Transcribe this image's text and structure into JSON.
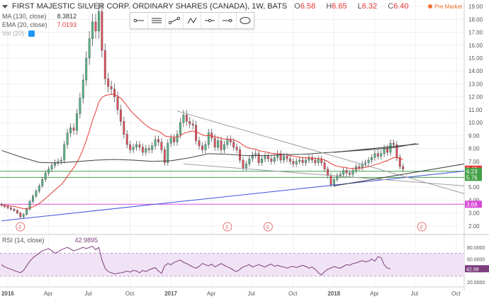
{
  "header": {
    "title": "FIRST MAJESTIC SILVER CORP. ORDINARY SHARES (CANADA), 1W, BATS",
    "open_label": "O",
    "open": "6.58",
    "high_label": "H",
    "high": "6.65",
    "low_label": "L",
    "low": "6.32",
    "close_label": "C",
    "close": "6.40",
    "pre_market": "Pre Market"
  },
  "indicators": {
    "ma_label": "MA (130, close)",
    "ma_value": "8.3812",
    "ema_label": "EMA (20, close)",
    "ema_value": "7.0193",
    "vol_label": "Vol (20)",
    "rsi_label": "RSI (14, close)",
    "rsi_value": "42.9895"
  },
  "toolbar": {
    "items": [
      "ray-tool-icon",
      "lines-tool-icon",
      "trend-line-icon",
      "zigzag-icon",
      "horizontal-line-icon",
      "ray-marker-icon",
      "ellipse-tool-icon"
    ]
  },
  "colors": {
    "up_candle": "#53b987",
    "down_candle": "#eb4d5c",
    "ma": "#444444",
    "ema": "#e53935",
    "trend_blue": "#3f4fdb",
    "trend_gray": "#9e9e9e",
    "support_green": "#43a047",
    "support_magenta": "#d84ad8",
    "rsi_line": "#7e3f7e",
    "rsi_band": "#f0e3f5"
  },
  "price_badges": [
    {
      "label": "6.40",
      "value": 6.4,
      "color": "#e53935"
    },
    {
      "label": "6.23",
      "value": 6.23,
      "color": "#43a047"
    },
    {
      "label": "5.76",
      "value": 5.76,
      "color": "#43a047"
    },
    {
      "label": "3.68",
      "value": 3.68,
      "color": "#d84ad8"
    }
  ],
  "chart_data": {
    "type": "candlestick",
    "title": "FIRST MAJESTIC SILVER CORP. ORDINARY SHARES (CANADA), 1W, BATS",
    "xlabel": "",
    "ylabel": "",
    "ylim": [
      1.5,
      19.5
    ],
    "y_ticks": [
      "2.00",
      "3.00",
      "4.00",
      "5.00",
      "6.00",
      "7.00",
      "8.00",
      "9.00",
      "10.00",
      "11.00",
      "12.00",
      "13.00",
      "14.00",
      "15.00",
      "16.00",
      "17.00",
      "18.00",
      "19.00"
    ],
    "x_ticks": [
      {
        "label": "2016",
        "t": 0
      },
      {
        "label": "Apr",
        "t": 13
      },
      {
        "label": "Jul",
        "t": 26
      },
      {
        "label": "Oct",
        "t": 39
      },
      {
        "label": "2017",
        "t": 52
      },
      {
        "label": "Apr",
        "t": 65
      },
      {
        "label": "Jul",
        "t": 78
      },
      {
        "label": "Oct",
        "t": 91
      },
      {
        "label": "2018",
        "t": 104
      },
      {
        "label": "Apr",
        "t": 117
      },
      {
        "label": "Jul",
        "t": 130
      },
      {
        "label": "Oct",
        "t": 143
      }
    ],
    "x_range": [
      -2.5,
      145.5
    ],
    "close_series": [
      3.6,
      3.5,
      3.4,
      3.3,
      3.2,
      3.0,
      2.7,
      2.9,
      3.3,
      3.9,
      4.3,
      4.7,
      5.1,
      5.6,
      6.1,
      6.4,
      6.7,
      6.9,
      7.0,
      7.1,
      8.3,
      9.2,
      9.6,
      9.4,
      10.7,
      11.9,
      13.3,
      15.0,
      16.5,
      17.8,
      17.1,
      18.6,
      15.6,
      13.4,
      12.8,
      12.6,
      12.0,
      11.0,
      10.1,
      9.1,
      8.3,
      7.9,
      8.1,
      8.3,
      8.1,
      7.7,
      8.0,
      7.9,
      8.2,
      8.7,
      8.5,
      7.9,
      6.9,
      8.4,
      8.8,
      8.5,
      9.1,
      10.0,
      10.6,
      10.1,
      9.9,
      9.8,
      8.6,
      8.2,
      7.9,
      8.3,
      9.2,
      8.8,
      8.1,
      8.6,
      7.9,
      8.3,
      8.7,
      8.5,
      8.1,
      7.9,
      7.1,
      6.5,
      6.8,
      7.2,
      7.5,
      7.6,
      6.9,
      7.2,
      7.4,
      7.2,
      7.0,
      7.3,
      7.6,
      7.1,
      7.4,
      7.2,
      7.0,
      6.8,
      7.0,
      7.1,
      6.9,
      7.1,
      7.3,
      7.1,
      6.9,
      7.2,
      6.9,
      6.4,
      5.9,
      5.2,
      5.6,
      5.9,
      6.0,
      6.3,
      6.1,
      6.0,
      6.3,
      6.6,
      6.5,
      6.8,
      6.9,
      7.1,
      7.3,
      7.6,
      7.4,
      7.6,
      8.0,
      7.7,
      8.4,
      8.3,
      7.3,
      6.6,
      6.4
    ],
    "start_t": -2,
    "series": [
      {
        "name": "MA (130, close)",
        "value_last": 8.3812,
        "points": [
          [
            -2,
            7.85
          ],
          [
            4,
            7.35
          ],
          [
            10,
            6.92
          ],
          [
            16,
            6.88
          ],
          [
            22,
            6.98
          ],
          [
            28,
            7.1
          ],
          [
            34,
            7.15
          ],
          [
            40,
            7.1
          ],
          [
            46,
            7.0
          ],
          [
            52,
            7.05
          ],
          [
            58,
            7.28
          ],
          [
            64,
            7.6
          ],
          [
            70,
            7.55
          ],
          [
            76,
            7.45
          ],
          [
            82,
            7.45
          ],
          [
            88,
            7.52
          ],
          [
            94,
            7.55
          ],
          [
            100,
            7.65
          ],
          [
            106,
            7.75
          ],
          [
            112,
            7.85
          ],
          [
            118,
            7.95
          ],
          [
            124,
            8.1
          ],
          [
            130,
            8.38
          ]
        ]
      },
      {
        "name": "EMA (20, close)",
        "value_last": 7.0193
      }
    ],
    "trend_lines": [
      {
        "name": "blue-support",
        "from": [
          -2,
          2.4
        ],
        "to": [
          145.5,
          6.25
        ],
        "color": "#3f4fdb"
      },
      {
        "name": "gray-upper-wedge",
        "from": [
          54,
          10.9
        ],
        "to": [
          145.5,
          4.5
        ],
        "color": "#9e9e9e"
      },
      {
        "name": "gray-lower-wedge",
        "from": [
          56,
          6.8
        ],
        "to": [
          145.5,
          5.1
        ],
        "color": "#9e9e9e"
      },
      {
        "name": "dark-channel-top",
        "from": [
          104,
          7.7
        ],
        "to": [
          131,
          8.35
        ],
        "color": "#333333"
      },
      {
        "name": "dark-channel-bottom",
        "from": [
          104,
          5.1
        ],
        "to": [
          145.5,
          6.8
        ],
        "color": "#333333"
      }
    ],
    "horizontal_levels": [
      {
        "value": 6.23,
        "color": "#43a047"
      },
      {
        "value": 5.76,
        "color": "#43a047"
      },
      {
        "value": 3.68,
        "color": "#d84ad8"
      }
    ],
    "earnings_markers": [
      {
        "label": "E",
        "t": 4
      },
      {
        "label": "E",
        "t": 70
      },
      {
        "label": "E",
        "t": 83
      },
      {
        "label": "E",
        "t": 132
      }
    ],
    "rsi": {
      "name": "RSI (14, close)",
      "ylim": [
        15,
        95
      ],
      "ticks": [
        "20.0000",
        "40.0000",
        "60.0000",
        "80.0000"
      ],
      "band": [
        30,
        70
      ],
      "last": 42.9895,
      "values": [
        50,
        46,
        44,
        42,
        40,
        38,
        36,
        40,
        48,
        56,
        62,
        66,
        70,
        74,
        76,
        78,
        74,
        70,
        72,
        76,
        78,
        80,
        77,
        74,
        76,
        78,
        80,
        78,
        80,
        82,
        76,
        80,
        58,
        44,
        38,
        36,
        34,
        35,
        36,
        37,
        39,
        37,
        40,
        39,
        36,
        40,
        38,
        41,
        43,
        45,
        39,
        35,
        48,
        52,
        50,
        54,
        56,
        58,
        54,
        52,
        49,
        46,
        44,
        47,
        52,
        50,
        48,
        51,
        46,
        49,
        52,
        49,
        46,
        44,
        40,
        38,
        42,
        46,
        48,
        50,
        46,
        48,
        50,
        48,
        46,
        49,
        51,
        47,
        49,
        47,
        46,
        44,
        46,
        47,
        45,
        47,
        49,
        47,
        44,
        46,
        42,
        36,
        32,
        38,
        42,
        44,
        47,
        45,
        44,
        47,
        50,
        49,
        52,
        53,
        55,
        57,
        55,
        56,
        60,
        56,
        64,
        62,
        50,
        44,
        43
      ]
    }
  }
}
